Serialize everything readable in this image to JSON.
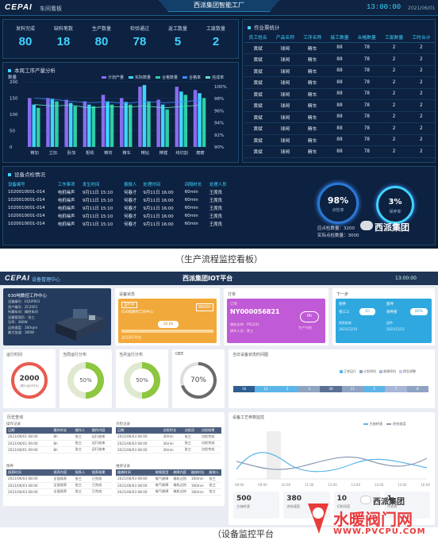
{
  "top": {
    "logo": "CEPAI",
    "subtitle": "车间看板",
    "title": "西派集团智能工厂",
    "time": "13:00:00",
    "date": "2021/06/01",
    "kpis": [
      {
        "label": "发料完成",
        "value": "80"
      },
      {
        "label": "缺料笔数",
        "value": "18"
      },
      {
        "label": "生产数量",
        "value": "80"
      },
      {
        "label": "检验通过",
        "value": "78"
      },
      {
        "label": "返工数量",
        "value": "5"
      },
      {
        "label": "工废数量",
        "value": "2"
      }
    ],
    "chart_title": "本周工序产量分析",
    "legend": [
      "计划产量",
      "实际数量",
      "合格数量",
      "合格率",
      "完成率"
    ],
    "axis_title": "数量",
    "y_ticks": [
      "200",
      "150",
      "100",
      "50",
      "0"
    ],
    "pct_ticks": [
      "100%",
      "98%",
      "96%",
      "94%",
      "92%",
      "90%"
    ],
    "orders_title": "作业票统计",
    "orders_headers": [
      "员工姓名",
      "产品名称",
      "工序名称",
      "接工数量",
      "合格数量",
      "工废数量",
      "工时合计"
    ],
    "orders_rows": [
      [
        "黄斌",
        "球阀",
        "精车",
        "88",
        "78",
        "2",
        "2"
      ],
      [
        "黄斌",
        "球阀",
        "精车",
        "88",
        "78",
        "2",
        "2"
      ],
      [
        "黄斌",
        "球阀",
        "精车",
        "88",
        "78",
        "2",
        "2"
      ],
      [
        "黄斌",
        "球阀",
        "精车",
        "88",
        "78",
        "2",
        "2"
      ],
      [
        "黄斌",
        "球阀",
        "精车",
        "88",
        "78",
        "2",
        "2"
      ],
      [
        "黄斌",
        "球阀",
        "精车",
        "88",
        "78",
        "2",
        "2"
      ],
      [
        "黄斌",
        "球阀",
        "精车",
        "88",
        "78",
        "2",
        "2"
      ],
      [
        "黄斌",
        "球阀",
        "精车",
        "88",
        "78",
        "2",
        "2"
      ],
      [
        "黄斌",
        "球阀",
        "精车",
        "88",
        "78",
        "2",
        "2"
      ],
      [
        "黄斌",
        "球阀",
        "精车",
        "88",
        "78",
        "2",
        "2"
      ]
    ],
    "check_title": "设备点检情况",
    "check_headers": [
      "设备编号",
      "工作事项",
      "发生时间",
      "报报人",
      "处理时间",
      "间隔时长",
      "处理人员"
    ],
    "check_rows": [
      [
        "1020010001-014",
        "电机噪声",
        "9月11日 15:10",
        "何春才",
        "9月11日 16:00",
        "60min",
        "王席良"
      ],
      [
        "1020010001-014",
        "电机噪声",
        "9月11日 15:10",
        "何春才",
        "9月11日 16:00",
        "60min",
        "王席良"
      ],
      [
        "1020010001-014",
        "电机噪声",
        "9月11日 15:10",
        "何春才",
        "9月11日 16:00",
        "60min",
        "王席良"
      ],
      [
        "1020010001-014",
        "电机噪声",
        "9月11日 15:10",
        "何春才",
        "9月11日 16:00",
        "60min",
        "王席良"
      ],
      [
        "1020010001-014",
        "电机噪声",
        "9月11日 15:10",
        "何春才",
        "9月11日 16:00",
        "60min",
        "王席良"
      ]
    ],
    "gauge1_value": "98%",
    "gauge1_label": "点检率",
    "gauge2_value": "3%",
    "gauge2_label": "保养率",
    "should_check": "应点检数量：3200",
    "actual_check": "实际点检数量：3000"
  },
  "caption1": "（生产流程监控看板）",
  "caption2": "（设备监控平台",
  "watermark1": "西派集团",
  "watermark2": "西派集团",
  "watermark_site": "水暖阀门网",
  "watermark_url": "WWW.PVCPU.COM",
  "chart_data": {
    "type": "bar",
    "title": "本周工序产量分析",
    "ylabel": "数量",
    "ylim": [
      0,
      200
    ],
    "y2lim": [
      90,
      100
    ],
    "categories": [
      "精加",
      "立加",
      "卧加",
      "粗铣",
      "精攻",
      "精车",
      "精钻",
      "精镗",
      "线切割",
      "磨磨"
    ],
    "series": [
      {
        "name": "计划产量",
        "values": [
          150,
          150,
          145,
          140,
          160,
          150,
          185,
          145,
          185,
          175
        ]
      },
      {
        "name": "实际数量",
        "values": [
          130,
          148,
          135,
          130,
          140,
          138,
          190,
          130,
          170,
          165
        ]
      },
      {
        "name": "合格数量",
        "values": [
          120,
          140,
          125,
          125,
          130,
          130,
          140,
          115,
          160,
          150
        ]
      },
      {
        "name": "合格率",
        "values": [
          97.5,
          97.3,
          97.0,
          96.8,
          96.9,
          96.7,
          97.0,
          96.8,
          96.9,
          97.2
        ]
      },
      {
        "name": "完成率",
        "values": [
          96.5,
          96.3,
          96.4,
          96.0,
          96.2,
          96.1,
          96.3,
          96.0,
          96.2,
          96.4
        ]
      }
    ]
  },
  "bottom": {
    "logo": "CEPAI",
    "subtitle": "设备管理中心",
    "title": "西派集团IOT平台",
    "time": "13:00:00",
    "machine_name": "630吨数控工作中心",
    "machine_props": [
      "设备编号：EQUP001",
      "资产编号：ZC2001",
      "所属车间：精密车间",
      "设备管理员：张三",
      "功率：380W",
      "运转速度：300rpm",
      "最大加速：300W"
    ],
    "status_title": "设备状态",
    "status_tag": "运行中",
    "status_state": "630吨数控工作中心",
    "status_time": "8600h",
    "status_hours": "10.0h",
    "status_footer": "当日运行时长",
    "order_title": "订单",
    "order_label": "订单",
    "order_no": "NY000056821",
    "order_info1": "物料名称：PR2201",
    "order_info2": "操作人员：陈三",
    "order_badge": "0h",
    "order_badge2": "生产节拍",
    "next_title": "下一步",
    "next_a": "保养",
    "next_b": "部件",
    "next_a_val": "1h",
    "next_b_val": "80%",
    "next_a_who": "张三三",
    "next_b_who": "保养部",
    "next_a_desc": "保养结束",
    "next_b_desc": "部件:",
    "next_a_date": "2021/12/10",
    "next_b_date": "2021/12/11",
    "g1_title": "运行时间",
    "g1_value": "2000",
    "g1_unit": "(累计运行时长)",
    "g2_title": "当周运行分布",
    "g2_value": "50%",
    "g3_title": "当月运行分布",
    "g3_value": "50%",
    "g4_title": "OEE",
    "g4_value": "70%",
    "timeline_title": "当日设备状态时间图",
    "timeline_legend": [
      "正常运行",
      "计划停机",
      "故障停机",
      "换型调整"
    ],
    "timeline_cells": [
      "16",
      "12",
      "5",
      "3",
      "30",
      "11",
      "5",
      "7",
      "8"
    ],
    "history_title": "历史查询",
    "hist_sections": [
      {
        "title": "操作记录",
        "cols": [
          "日期",
          "操作时长",
          "操作人",
          "操作内容"
        ],
        "rows": [
          [
            "2021/06/01 08:00",
            "8h",
            "张三",
            "运行结束"
          ],
          [
            "2021/06/01 09:00",
            "8h",
            "张三",
            "运行结束"
          ],
          [
            "2021/06/01 09:00",
            "8h",
            "张三",
            "运行结束"
          ]
        ]
      },
      {
        "title": "点检记录",
        "cols": [
          "日期",
          "点检时长",
          "点检员",
          "点检结果"
        ],
        "rows": [
          [
            "2021/06/03 08:00",
            "30min",
            "张三",
            "点检完成"
          ],
          [
            "2021/06/03 08:00",
            "30min",
            "张三",
            "点检完成"
          ],
          [
            "2021/06/03 08:00",
            "30min",
            "张三",
            "点检完成"
          ]
        ]
      },
      {
        "title": "保养",
        "cols": [
          "保养时间",
          "保养内容",
          "保养人",
          "保养结果"
        ],
        "rows": [
          [
            "2021/06/03 08:00",
            "全面保养",
            "张三",
            "已完成"
          ],
          [
            "2021/06/03 08:00",
            "全面保养",
            "张三",
            "已完成"
          ],
          [
            "2021/06/03 08:00",
            "全面保养",
            "张三",
            "已完成"
          ]
        ]
      },
      {
        "title": "维修记录",
        "cols": [
          "维修时间",
          "故障类型",
          "故障内容",
          "维修时长",
          "维修人"
        ],
        "rows": [
          [
            "2021/06/03 08:00",
            "电气故障",
            "电机过热",
            "160min",
            "张三"
          ],
          [
            "2021/06/03 08:00",
            "电气故障",
            "电机过热",
            "160min",
            "张三"
          ],
          [
            "2021/06/03 08:00",
            "电气故障",
            "电机过热",
            "160min",
            "张三"
          ]
        ]
      }
    ],
    "work_title": "设备工艺参数监控",
    "work_legend": [
      "主轴转速",
      "进给速度"
    ],
    "x_ticks": [
      "08:00",
      "09:00",
      "10:00",
      "11:00",
      "12:00",
      "13:00",
      "14:00",
      "15:00",
      "16:00"
    ],
    "stats": [
      {
        "value": "500",
        "label": "主轴转速"
      },
      {
        "value": "380",
        "label": "进给速度"
      },
      {
        "value": "10",
        "label": "切削深度"
      },
      {
        "value": "1",
        "label": "冷却液"
      }
    ]
  }
}
